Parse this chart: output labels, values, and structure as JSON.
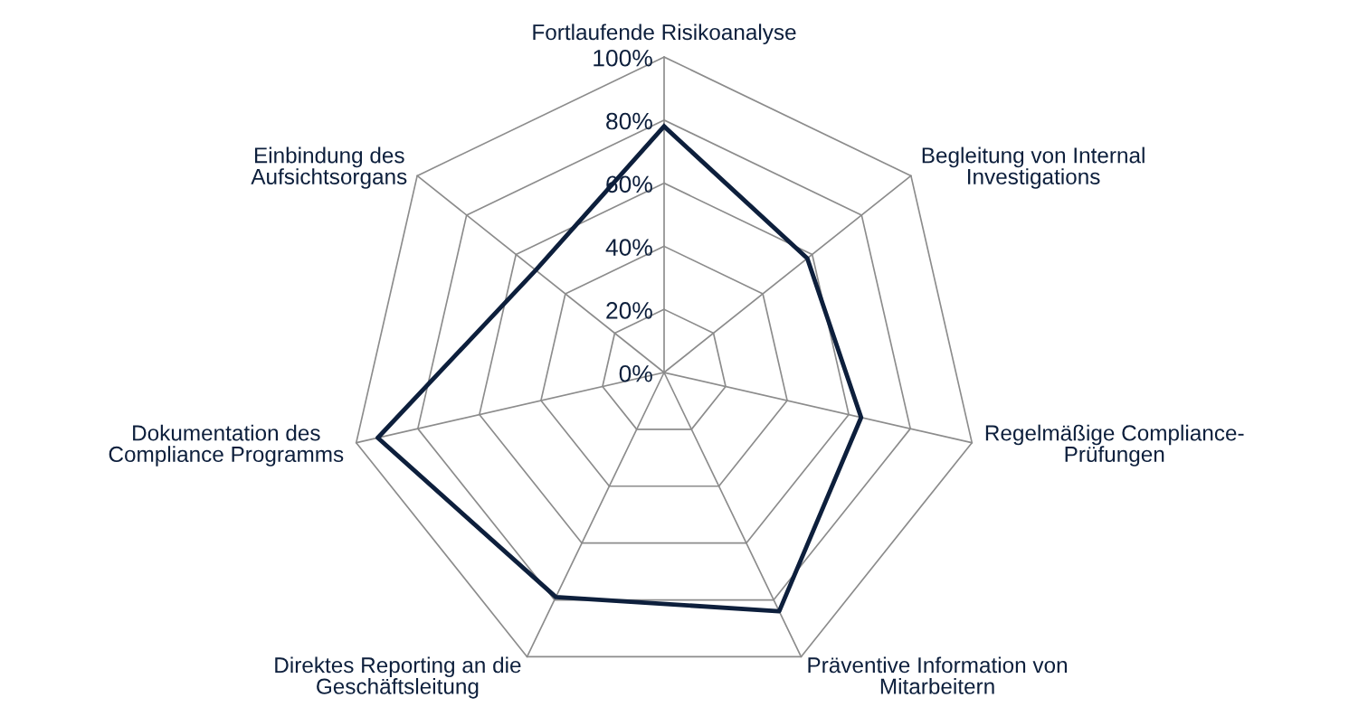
{
  "chart_data": {
    "type": "radar",
    "categories": [
      "Fortlaufende Risikoanalyse",
      "Begleitung von Internal\nInvestigations",
      "Regelmäßige Compliance-\nPrüfungen",
      "Präventive Information von\nMitarbeitern",
      "Direktes Reporting an die\nGeschäftsleitung",
      "Dokumentation des\nCompliance Programms",
      "Einbindung des\nAufsichtsorgans"
    ],
    "series": [
      {
        "color": "#0d1f3c",
        "values": [
          78,
          58,
          64,
          84,
          79,
          93,
          52
        ]
      }
    ],
    "ylim": [
      0,
      100
    ],
    "yticks": [
      {
        "value": 0,
        "label": "0%"
      },
      {
        "value": 20,
        "label": "20%"
      },
      {
        "value": 40,
        "label": "40%"
      },
      {
        "value": 60,
        "label": "60%"
      },
      {
        "value": 80,
        "label": "80%"
      },
      {
        "value": 100,
        "label": "100%"
      }
    ],
    "grid": true,
    "marker": "none",
    "line_style": "solid"
  }
}
